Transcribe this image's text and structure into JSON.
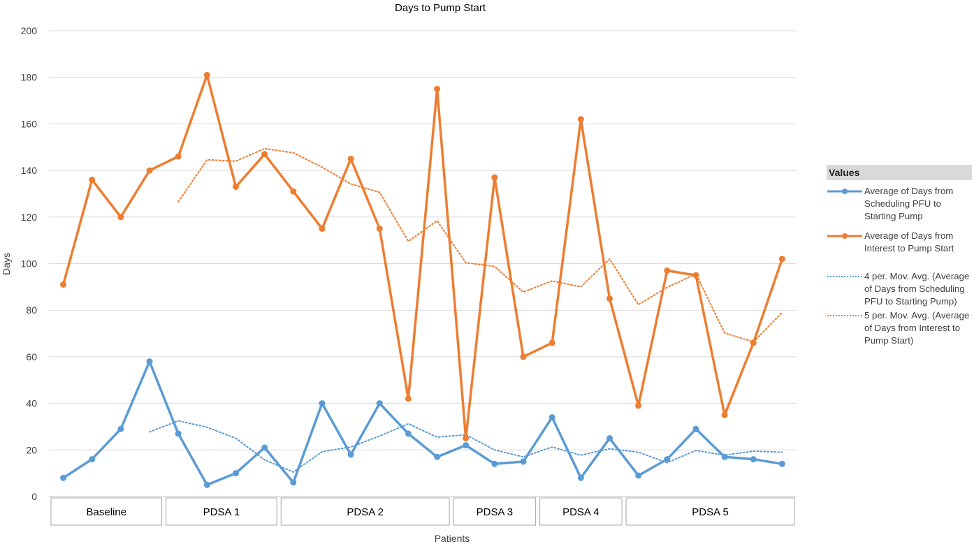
{
  "chart_data": {
    "type": "line",
    "title": "Days to Pump Start",
    "xlabel": "Patients",
    "ylabel": "Days",
    "ylim": [
      0,
      200
    ],
    "yticks": [
      0,
      20,
      40,
      60,
      80,
      100,
      120,
      140,
      160,
      180,
      200
    ],
    "grid": true,
    "n_points": 26,
    "phases": [
      {
        "label": "Baseline",
        "points": 4
      },
      {
        "label": "PDSA 1",
        "points": 4
      },
      {
        "label": "PDSA 2",
        "points": 6
      },
      {
        "label": "PDSA 3",
        "points": 3
      },
      {
        "label": "PDSA 4",
        "points": 3
      },
      {
        "label": "PDSA 5",
        "points": 6
      }
    ],
    "series": [
      {
        "name": "Average of Days from Scheduling PFU to Starting Pump",
        "color": "#5b9bd5",
        "style": "solid-marker",
        "values": [
          8,
          16,
          29,
          58,
          27,
          5,
          10,
          21,
          6,
          40,
          18,
          40,
          27,
          17,
          22,
          14,
          15,
          34,
          8,
          25,
          9,
          16,
          29,
          17,
          16,
          14
        ]
      },
      {
        "name": "Average of Days from Interest to Pump Start",
        "color": "#ed7d31",
        "style": "solid-marker",
        "values": [
          91,
          136,
          120,
          140,
          146,
          181,
          133,
          147,
          131,
          115,
          145,
          115,
          42,
          175,
          25,
          137,
          60,
          66,
          162,
          85,
          39,
          97,
          95,
          35,
          66,
          102
        ]
      },
      {
        "name": "4 per. Mov. Avg. (Average of Days from Scheduling PFU to Starting Pump)",
        "color": "#5b9bd5",
        "style": "dotted",
        "period": 4,
        "source": 0
      },
      {
        "name": "5 per. Mov. Avg. (Average of Days from Interest to Pump Start)",
        "color": "#ed7d31",
        "style": "dotted",
        "period": 5,
        "source": 1
      }
    ],
    "legend": {
      "title": "Values",
      "position": "right",
      "items": [
        "Average of Days from Scheduling PFU to Starting Pump",
        "Average of Days from Interest to Pump Start",
        "4 per. Mov. Avg. (Average of Days from Scheduling PFU to Starting Pump)",
        "5 per. Mov. Avg. (Average of Days from Interest to Pump Start)"
      ]
    }
  }
}
